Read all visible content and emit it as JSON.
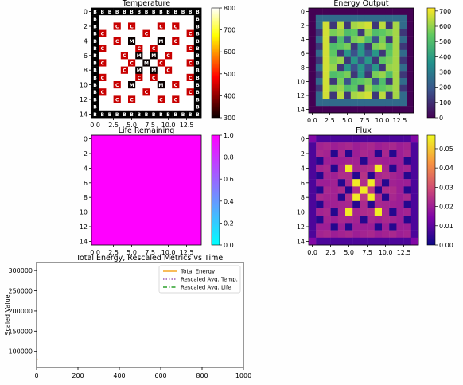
{
  "chart_data": [
    {
      "type": "heatmap",
      "title": "Temperature",
      "x_ticks": [
        "0.0",
        "2.5",
        "5.0",
        "7.5",
        "10.0",
        "12.5"
      ],
      "y_ticks": [
        "0",
        "2",
        "4",
        "6",
        "8",
        "10",
        "12",
        "14"
      ],
      "colorbar_ticks": [
        "800",
        "700",
        "600",
        "500",
        "400",
        "300"
      ],
      "colormap": "hot",
      "vmin": 300,
      "vmax": 800,
      "background_value": 800,
      "border_value": 300,
      "cell_letters": {
        "border": "B",
        "control": "C",
        "moderator": "M"
      },
      "control_cells": [
        [
          2,
          3
        ],
        [
          2,
          5
        ],
        [
          2,
          9
        ],
        [
          2,
          11
        ],
        [
          3,
          1
        ],
        [
          3,
          7
        ],
        [
          3,
          13
        ],
        [
          4,
          3
        ],
        [
          4,
          11
        ],
        [
          5,
          1
        ],
        [
          5,
          6
        ],
        [
          5,
          8
        ],
        [
          5,
          13
        ],
        [
          6,
          4
        ],
        [
          6,
          10
        ],
        [
          7,
          1
        ],
        [
          7,
          5
        ],
        [
          7,
          9
        ],
        [
          7,
          13
        ],
        [
          8,
          4
        ],
        [
          8,
          10
        ],
        [
          9,
          1
        ],
        [
          9,
          6
        ],
        [
          9,
          8
        ],
        [
          9,
          13
        ],
        [
          10,
          3
        ],
        [
          10,
          11
        ],
        [
          11,
          1
        ],
        [
          11,
          7
        ],
        [
          11,
          13
        ],
        [
          12,
          3
        ],
        [
          12,
          5
        ],
        [
          12,
          9
        ],
        [
          12,
          11
        ]
      ],
      "moderator_cells": [
        [
          4,
          5
        ],
        [
          4,
          9
        ],
        [
          6,
          6
        ],
        [
          6,
          8
        ],
        [
          7,
          7
        ],
        [
          8,
          6
        ],
        [
          8,
          8
        ],
        [
          10,
          5
        ],
        [
          10,
          9
        ]
      ]
    },
    {
      "type": "heatmap",
      "title": "Energy Output",
      "x_ticks": [
        "0.0",
        "2.5",
        "5.0",
        "7.5",
        "10.0",
        "12.5"
      ],
      "y_ticks": [
        "0",
        "2",
        "4",
        "6",
        "8",
        "10",
        "12",
        "14"
      ],
      "colorbar_ticks": [
        "700",
        "600",
        "500",
        "400",
        "300",
        "200",
        "100",
        "0"
      ],
      "colormap": "viridis",
      "vmin": 0,
      "vmax": 720
    },
    {
      "type": "heatmap",
      "title": "Life Remaining",
      "x_ticks": [
        "0.0",
        "2.5",
        "5.0",
        "7.5",
        "10.0",
        "12.5"
      ],
      "y_ticks": [
        "0",
        "2",
        "4",
        "6",
        "8",
        "10",
        "12",
        "14"
      ],
      "colorbar_ticks": [
        "1.0",
        "0.8",
        "0.6",
        "0.4",
        "0.2",
        "0.0"
      ],
      "colormap": "cool",
      "vmin": 0.0,
      "vmax": 1.0,
      "uniform_value": 1.0
    },
    {
      "type": "heatmap",
      "title": "Flux",
      "x_ticks": [
        "0.0",
        "2.5",
        "5.0",
        "7.5",
        "10.0",
        "12.5"
      ],
      "y_ticks": [
        "0",
        "2",
        "4",
        "6",
        "8",
        "10",
        "12",
        "14"
      ],
      "colorbar_ticks": [
        "0.05",
        "0.04",
        "0.03",
        "0.02",
        "0.01",
        "0.00"
      ],
      "colormap": "plasma",
      "vmin": 0.0,
      "vmax": 0.057
    },
    {
      "type": "line",
      "title": "Total Energy, Rescaled Metrics vs Time",
      "ylabel": "Scaled Value",
      "xlim": [
        0,
        1000
      ],
      "ylim": [
        60000,
        320000
      ],
      "x_ticks": [
        "0",
        "200",
        "400",
        "600",
        "800",
        "1000"
      ],
      "y_ticks": [
        "300000",
        "250000",
        "200000",
        "150000",
        "100000"
      ],
      "legend": "top-right",
      "series": [
        {
          "name": "Total Energy",
          "style": "solid",
          "color": "#f5a623",
          "x": [
            0,
            5
          ],
          "y": [
            80000,
            80000
          ]
        },
        {
          "name": "Rescaled Avg. Temp.",
          "style": "dotted",
          "color": "#9b59b6",
          "x": [],
          "y": []
        },
        {
          "name": "Rescaled Avg. Life",
          "style": "dashdot",
          "color": "#2ca02c",
          "x": [],
          "y": []
        }
      ]
    }
  ]
}
